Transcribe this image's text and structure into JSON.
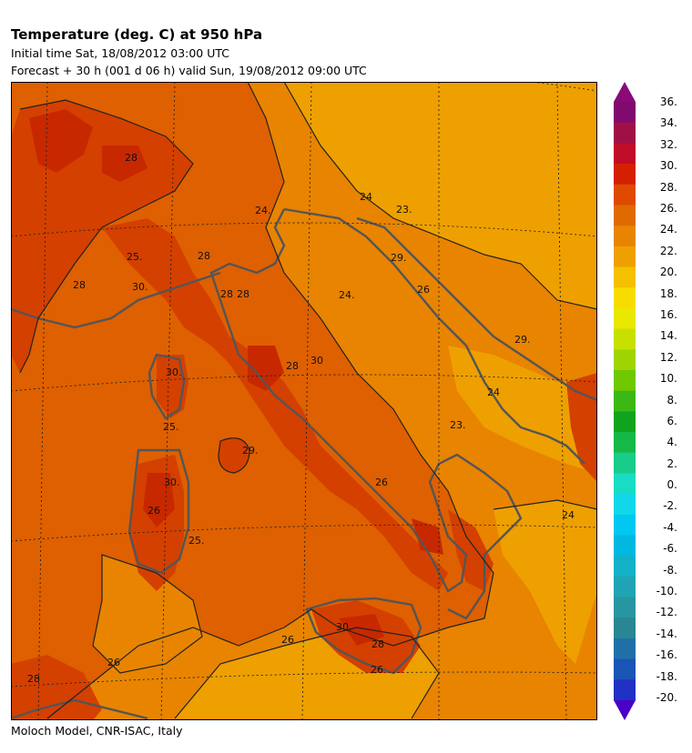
{
  "header": {
    "title": "Temperature (deg. C) at 950 hPa",
    "initial_time": "Initial time  Sat, 18/08/2012  03:00 UTC",
    "forecast": "Forecast  +  30 h  (001 d 06 h)  valid Sun, 19/08/2012 09:00 UTC"
  },
  "footer": {
    "credit": "Moloch Model, CNR-ISAC, Italy"
  },
  "colorbar": {
    "labels": [
      "36.",
      "34.",
      "32.",
      "30.",
      "28.",
      "26.",
      "24.",
      "22.",
      "20.",
      "18.",
      "16.",
      "14.",
      "12.",
      "10.",
      "8.",
      "6.",
      "4.",
      "2.",
      "0.",
      "-2.",
      "-4.",
      "-6.",
      "-8.",
      "-10.",
      "-12.",
      "-14.",
      "-16.",
      "-18.",
      "-20."
    ],
    "colors": [
      "#800a6e",
      "#a01046",
      "#c00c28",
      "#d42000",
      "#de4a00",
      "#e06a00",
      "#e88400",
      "#eea000",
      "#f4c000",
      "#f8dc00",
      "#e8e800",
      "#c8e000",
      "#a0d400",
      "#70c800",
      "#3cb814",
      "#10a41e",
      "#16b848",
      "#18cc8a",
      "#18dcc4",
      "#10d8e8",
      "#00c8f0",
      "#00b8e0",
      "#14b0c8",
      "#20a4b4",
      "#2896a0",
      "#2a8690",
      "#2070a8",
      "#1a54b4",
      "#2030c4"
    ],
    "top_arrow_color": "#8a0a78",
    "bottom_arrow_color": "#4a00c8"
  },
  "map": {
    "colors": {
      "band_22_24": "#eea000",
      "band_24_26": "#e88400",
      "band_26_28": "#de6000",
      "band_28_30": "#d44000",
      "band_30_32": "#c82800",
      "coast": "#555555",
      "contour": "#222222",
      "grid": "#222222"
    },
    "contour_labels": [
      "28",
      "24.",
      "24",
      "23.",
      "25.",
      "28",
      "30.",
      "28",
      "28",
      "29.",
      "24.",
      "26",
      "30.",
      "28",
      "28",
      "30",
      "25.",
      "29.",
      "23.",
      "24",
      "30.",
      "26",
      "29.",
      "25.",
      "26",
      "26",
      "30.",
      "28",
      "26",
      "24",
      "26",
      "28"
    ]
  }
}
